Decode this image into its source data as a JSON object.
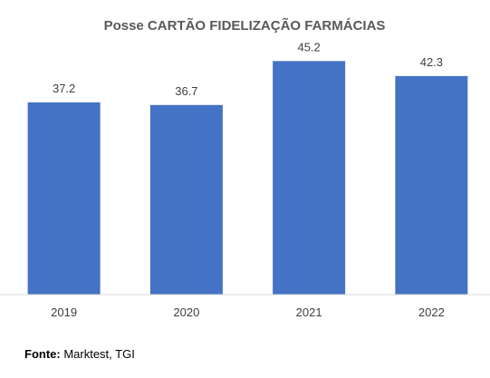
{
  "chart_data": {
    "type": "bar",
    "title": "Posse CARTÃO FIDELIZAÇÃO FARMÁCIAS",
    "categories": [
      "2019",
      "2020",
      "2021",
      "2022"
    ],
    "values": [
      37.2,
      36.7,
      45.2,
      42.3
    ],
    "value_labels": [
      "37.2",
      "36.7",
      "45.2",
      "42.3"
    ],
    "ylim": [
      0,
      50
    ],
    "grid": false,
    "legend": "none",
    "bar_color": "#4472C4"
  },
  "source": {
    "label": "Fonte:",
    "text": " Marktest, TGI"
  }
}
